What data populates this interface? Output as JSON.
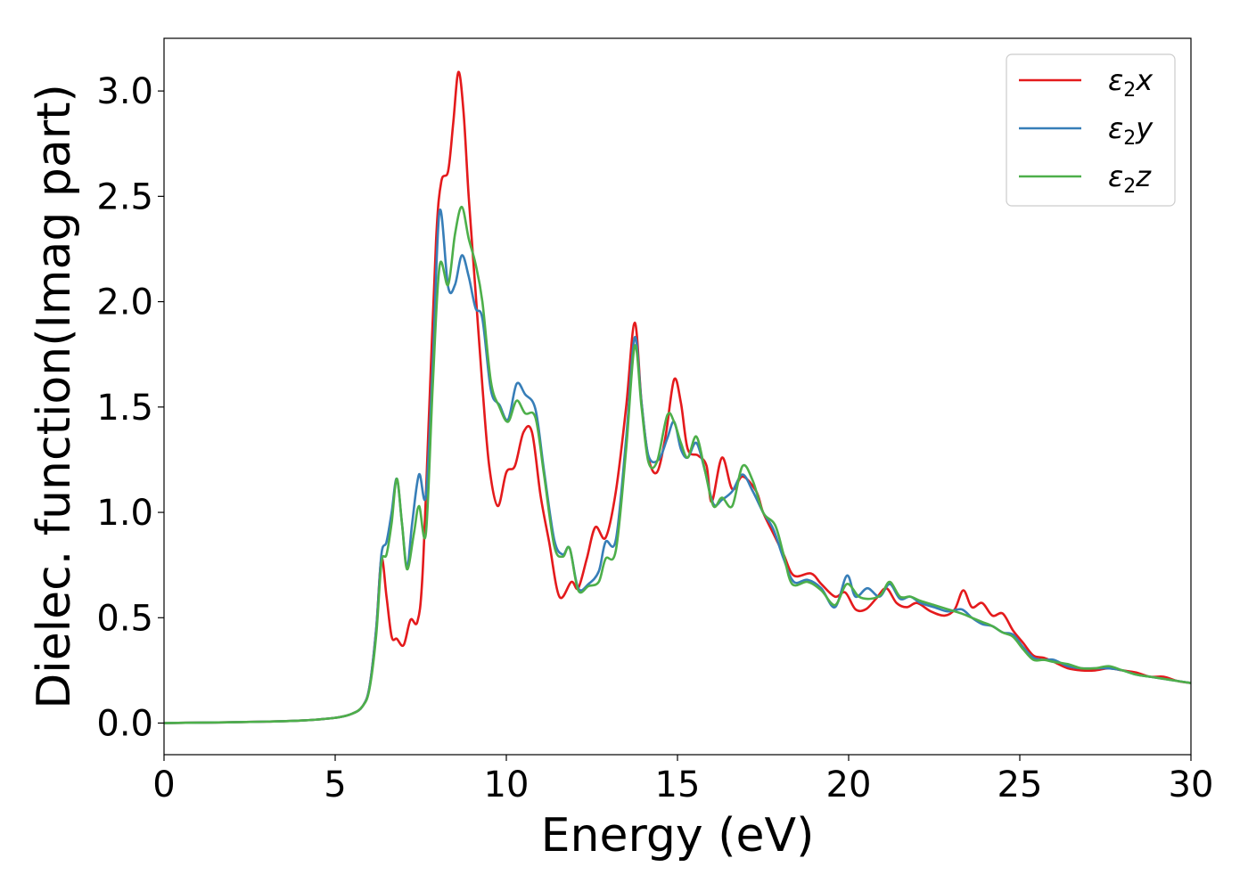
{
  "chart_data": {
    "type": "line",
    "xlabel": "Energy (eV)",
    "ylabel": "Dielec. function(Imag part)",
    "xlim": [
      0,
      30
    ],
    "ylim": [
      -0.15,
      3.25
    ],
    "xticks": [
      0,
      5,
      10,
      15,
      20,
      25,
      30
    ],
    "xtick_labels": [
      "0",
      "5",
      "10",
      "15",
      "20",
      "25",
      "30"
    ],
    "yticks": [
      0.0,
      0.5,
      1.0,
      1.5,
      2.0,
      2.5,
      3.0
    ],
    "ytick_labels": [
      "0.0",
      "0.5",
      "1.0",
      "1.5",
      "2.0",
      "2.5",
      "3.0"
    ],
    "grid": false,
    "legend_position": "top-right",
    "series": [
      {
        "name": "ε₂x",
        "legend": {
          "base": "ε",
          "sub": "2",
          "suffix": "x"
        },
        "color": "#e41a1c",
        "points": [
          [
            0,
            0
          ],
          [
            1,
            0.002
          ],
          [
            2,
            0.004
          ],
          [
            3,
            0.007
          ],
          [
            4,
            0.012
          ],
          [
            5,
            0.025
          ],
          [
            5.5,
            0.045
          ],
          [
            5.8,
            0.08
          ],
          [
            6.0,
            0.17
          ],
          [
            6.2,
            0.45
          ],
          [
            6.35,
            0.78
          ],
          [
            6.5,
            0.6
          ],
          [
            6.65,
            0.41
          ],
          [
            6.8,
            0.4
          ],
          [
            7.0,
            0.37
          ],
          [
            7.2,
            0.49
          ],
          [
            7.4,
            0.48
          ],
          [
            7.55,
            0.7
          ],
          [
            7.75,
            1.5
          ],
          [
            7.95,
            2.3
          ],
          [
            8.1,
            2.57
          ],
          [
            8.3,
            2.62
          ],
          [
            8.45,
            2.85
          ],
          [
            8.6,
            3.09
          ],
          [
            8.75,
            2.9
          ],
          [
            8.9,
            2.5
          ],
          [
            9.1,
            2.05
          ],
          [
            9.3,
            1.6
          ],
          [
            9.5,
            1.22
          ],
          [
            9.75,
            1.03
          ],
          [
            10.0,
            1.19
          ],
          [
            10.25,
            1.22
          ],
          [
            10.5,
            1.38
          ],
          [
            10.75,
            1.38
          ],
          [
            11.0,
            1.08
          ],
          [
            11.25,
            0.86
          ],
          [
            11.55,
            0.6
          ],
          [
            11.9,
            0.67
          ],
          [
            12.1,
            0.64
          ],
          [
            12.35,
            0.78
          ],
          [
            12.6,
            0.93
          ],
          [
            12.9,
            0.88
          ],
          [
            13.2,
            1.1
          ],
          [
            13.5,
            1.5
          ],
          [
            13.75,
            1.9
          ],
          [
            13.95,
            1.52
          ],
          [
            14.15,
            1.26
          ],
          [
            14.4,
            1.19
          ],
          [
            14.65,
            1.36
          ],
          [
            14.9,
            1.63
          ],
          [
            15.1,
            1.52
          ],
          [
            15.3,
            1.3
          ],
          [
            15.6,
            1.27
          ],
          [
            15.85,
            1.22
          ],
          [
            16.0,
            1.05
          ],
          [
            16.3,
            1.26
          ],
          [
            16.6,
            1.11
          ],
          [
            16.9,
            1.17
          ],
          [
            17.3,
            1.1
          ],
          [
            17.5,
            1.0
          ],
          [
            17.8,
            0.9
          ],
          [
            18.1,
            0.8
          ],
          [
            18.4,
            0.7
          ],
          [
            18.9,
            0.71
          ],
          [
            19.2,
            0.66
          ],
          [
            19.6,
            0.6
          ],
          [
            19.9,
            0.62
          ],
          [
            20.2,
            0.54
          ],
          [
            20.5,
            0.54
          ],
          [
            20.8,
            0.59
          ],
          [
            21.1,
            0.64
          ],
          [
            21.4,
            0.57
          ],
          [
            21.7,
            0.55
          ],
          [
            22.0,
            0.57
          ],
          [
            22.4,
            0.53
          ],
          [
            22.8,
            0.51
          ],
          [
            23.1,
            0.54
          ],
          [
            23.35,
            0.63
          ],
          [
            23.6,
            0.55
          ],
          [
            23.9,
            0.57
          ],
          [
            24.2,
            0.51
          ],
          [
            24.5,
            0.52
          ],
          [
            24.8,
            0.44
          ],
          [
            25.1,
            0.38
          ],
          [
            25.4,
            0.32
          ],
          [
            25.7,
            0.31
          ],
          [
            26.0,
            0.29
          ],
          [
            26.4,
            0.26
          ],
          [
            26.8,
            0.25
          ],
          [
            27.2,
            0.25
          ],
          [
            27.6,
            0.26
          ],
          [
            28.0,
            0.25
          ],
          [
            28.4,
            0.24
          ],
          [
            28.8,
            0.22
          ],
          [
            29.2,
            0.22
          ],
          [
            29.6,
            0.2
          ],
          [
            30,
            0.19
          ]
        ]
      },
      {
        "name": "ε₂y",
        "legend": {
          "base": "ε",
          "sub": "2",
          "suffix": "y"
        },
        "color": "#377eb8",
        "points": [
          [
            0,
            0
          ],
          [
            1,
            0.002
          ],
          [
            2,
            0.004
          ],
          [
            3,
            0.007
          ],
          [
            4,
            0.012
          ],
          [
            5,
            0.025
          ],
          [
            5.5,
            0.045
          ],
          [
            5.8,
            0.08
          ],
          [
            6.0,
            0.17
          ],
          [
            6.2,
            0.45
          ],
          [
            6.35,
            0.8
          ],
          [
            6.5,
            0.86
          ],
          [
            6.65,
            1.0
          ],
          [
            6.8,
            1.16
          ],
          [
            6.95,
            0.95
          ],
          [
            7.1,
            0.74
          ],
          [
            7.25,
            0.95
          ],
          [
            7.45,
            1.18
          ],
          [
            7.65,
            1.08
          ],
          [
            7.85,
            1.7
          ],
          [
            8.05,
            2.43
          ],
          [
            8.3,
            2.07
          ],
          [
            8.5,
            2.08
          ],
          [
            8.7,
            2.22
          ],
          [
            8.9,
            2.12
          ],
          [
            9.1,
            1.97
          ],
          [
            9.3,
            1.92
          ],
          [
            9.55,
            1.58
          ],
          [
            9.8,
            1.51
          ],
          [
            10.05,
            1.44
          ],
          [
            10.3,
            1.61
          ],
          [
            10.55,
            1.56
          ],
          [
            10.85,
            1.49
          ],
          [
            11.1,
            1.2
          ],
          [
            11.4,
            0.87
          ],
          [
            11.65,
            0.8
          ],
          [
            11.85,
            0.83
          ],
          [
            12.1,
            0.64
          ],
          [
            12.4,
            0.66
          ],
          [
            12.7,
            0.72
          ],
          [
            12.9,
            0.86
          ],
          [
            13.2,
            0.87
          ],
          [
            13.5,
            1.35
          ],
          [
            13.75,
            1.83
          ],
          [
            13.95,
            1.52
          ],
          [
            14.15,
            1.27
          ],
          [
            14.45,
            1.25
          ],
          [
            14.7,
            1.35
          ],
          [
            14.9,
            1.43
          ],
          [
            15.1,
            1.3
          ],
          [
            15.3,
            1.26
          ],
          [
            15.55,
            1.33
          ],
          [
            15.8,
            1.2
          ],
          [
            16.05,
            1.04
          ],
          [
            16.3,
            1.06
          ],
          [
            16.6,
            1.1
          ],
          [
            16.9,
            1.18
          ],
          [
            17.2,
            1.1
          ],
          [
            17.5,
            1.0
          ],
          [
            17.8,
            0.92
          ],
          [
            18.1,
            0.78
          ],
          [
            18.4,
            0.67
          ],
          [
            18.8,
            0.68
          ],
          [
            19.2,
            0.64
          ],
          [
            19.6,
            0.55
          ],
          [
            19.95,
            0.7
          ],
          [
            20.2,
            0.6
          ],
          [
            20.55,
            0.64
          ],
          [
            20.9,
            0.6
          ],
          [
            21.2,
            0.66
          ],
          [
            21.5,
            0.59
          ],
          [
            21.8,
            0.6
          ],
          [
            22.1,
            0.57
          ],
          [
            22.5,
            0.55
          ],
          [
            22.9,
            0.53
          ],
          [
            23.3,
            0.54
          ],
          [
            23.6,
            0.5
          ],
          [
            23.9,
            0.47
          ],
          [
            24.2,
            0.46
          ],
          [
            24.5,
            0.43
          ],
          [
            24.8,
            0.42
          ],
          [
            25.1,
            0.36
          ],
          [
            25.4,
            0.31
          ],
          [
            25.7,
            0.3
          ],
          [
            26.0,
            0.3
          ],
          [
            26.4,
            0.27
          ],
          [
            26.8,
            0.26
          ],
          [
            27.2,
            0.26
          ],
          [
            27.6,
            0.26
          ],
          [
            28.0,
            0.25
          ],
          [
            28.4,
            0.23
          ],
          [
            28.8,
            0.22
          ],
          [
            29.2,
            0.21
          ],
          [
            29.6,
            0.2
          ],
          [
            30,
            0.19
          ]
        ]
      },
      {
        "name": "ε₂z",
        "legend": {
          "base": "ε",
          "sub": "2",
          "suffix": "z"
        },
        "color": "#4daf4a",
        "points": [
          [
            0,
            0
          ],
          [
            1,
            0.002
          ],
          [
            2,
            0.004
          ],
          [
            3,
            0.007
          ],
          [
            4,
            0.012
          ],
          [
            5,
            0.025
          ],
          [
            5.5,
            0.045
          ],
          [
            5.8,
            0.08
          ],
          [
            6.0,
            0.16
          ],
          [
            6.2,
            0.42
          ],
          [
            6.35,
            0.76
          ],
          [
            6.5,
            0.8
          ],
          [
            6.65,
            0.95
          ],
          [
            6.8,
            1.16
          ],
          [
            6.95,
            0.95
          ],
          [
            7.1,
            0.73
          ],
          [
            7.3,
            0.9
          ],
          [
            7.45,
            1.03
          ],
          [
            7.65,
            0.9
          ],
          [
            7.85,
            1.6
          ],
          [
            8.05,
            2.17
          ],
          [
            8.3,
            2.08
          ],
          [
            8.5,
            2.32
          ],
          [
            8.7,
            2.45
          ],
          [
            8.9,
            2.3
          ],
          [
            9.1,
            2.18
          ],
          [
            9.3,
            2.0
          ],
          [
            9.55,
            1.62
          ],
          [
            9.8,
            1.5
          ],
          [
            10.05,
            1.43
          ],
          [
            10.3,
            1.53
          ],
          [
            10.55,
            1.47
          ],
          [
            10.85,
            1.45
          ],
          [
            11.1,
            1.18
          ],
          [
            11.4,
            0.84
          ],
          [
            11.65,
            0.79
          ],
          [
            11.85,
            0.83
          ],
          [
            12.1,
            0.63
          ],
          [
            12.4,
            0.65
          ],
          [
            12.7,
            0.67
          ],
          [
            12.9,
            0.78
          ],
          [
            13.2,
            0.82
          ],
          [
            13.5,
            1.3
          ],
          [
            13.75,
            1.79
          ],
          [
            13.95,
            1.5
          ],
          [
            14.15,
            1.24
          ],
          [
            14.4,
            1.24
          ],
          [
            14.7,
            1.46
          ],
          [
            14.9,
            1.43
          ],
          [
            15.1,
            1.33
          ],
          [
            15.3,
            1.26
          ],
          [
            15.55,
            1.36
          ],
          [
            15.8,
            1.2
          ],
          [
            16.05,
            1.03
          ],
          [
            16.3,
            1.07
          ],
          [
            16.6,
            1.03
          ],
          [
            16.9,
            1.22
          ],
          [
            17.2,
            1.15
          ],
          [
            17.5,
            1.0
          ],
          [
            17.85,
            0.94
          ],
          [
            18.1,
            0.8
          ],
          [
            18.35,
            0.66
          ],
          [
            18.8,
            0.67
          ],
          [
            19.2,
            0.63
          ],
          [
            19.6,
            0.56
          ],
          [
            19.95,
            0.66
          ],
          [
            20.3,
            0.6
          ],
          [
            20.65,
            0.59
          ],
          [
            20.95,
            0.61
          ],
          [
            21.2,
            0.67
          ],
          [
            21.5,
            0.6
          ],
          [
            21.8,
            0.6
          ],
          [
            22.1,
            0.58
          ],
          [
            22.5,
            0.56
          ],
          [
            22.9,
            0.54
          ],
          [
            23.3,
            0.52
          ],
          [
            23.6,
            0.5
          ],
          [
            23.9,
            0.48
          ],
          [
            24.2,
            0.46
          ],
          [
            24.5,
            0.43
          ],
          [
            24.8,
            0.41
          ],
          [
            25.1,
            0.35
          ],
          [
            25.4,
            0.3
          ],
          [
            25.7,
            0.3
          ],
          [
            26.0,
            0.29
          ],
          [
            26.4,
            0.28
          ],
          [
            26.8,
            0.26
          ],
          [
            27.2,
            0.26
          ],
          [
            27.6,
            0.27
          ],
          [
            28.0,
            0.25
          ],
          [
            28.4,
            0.23
          ],
          [
            28.8,
            0.22
          ],
          [
            29.2,
            0.21
          ],
          [
            29.6,
            0.2
          ],
          [
            30,
            0.19
          ]
        ]
      }
    ]
  }
}
